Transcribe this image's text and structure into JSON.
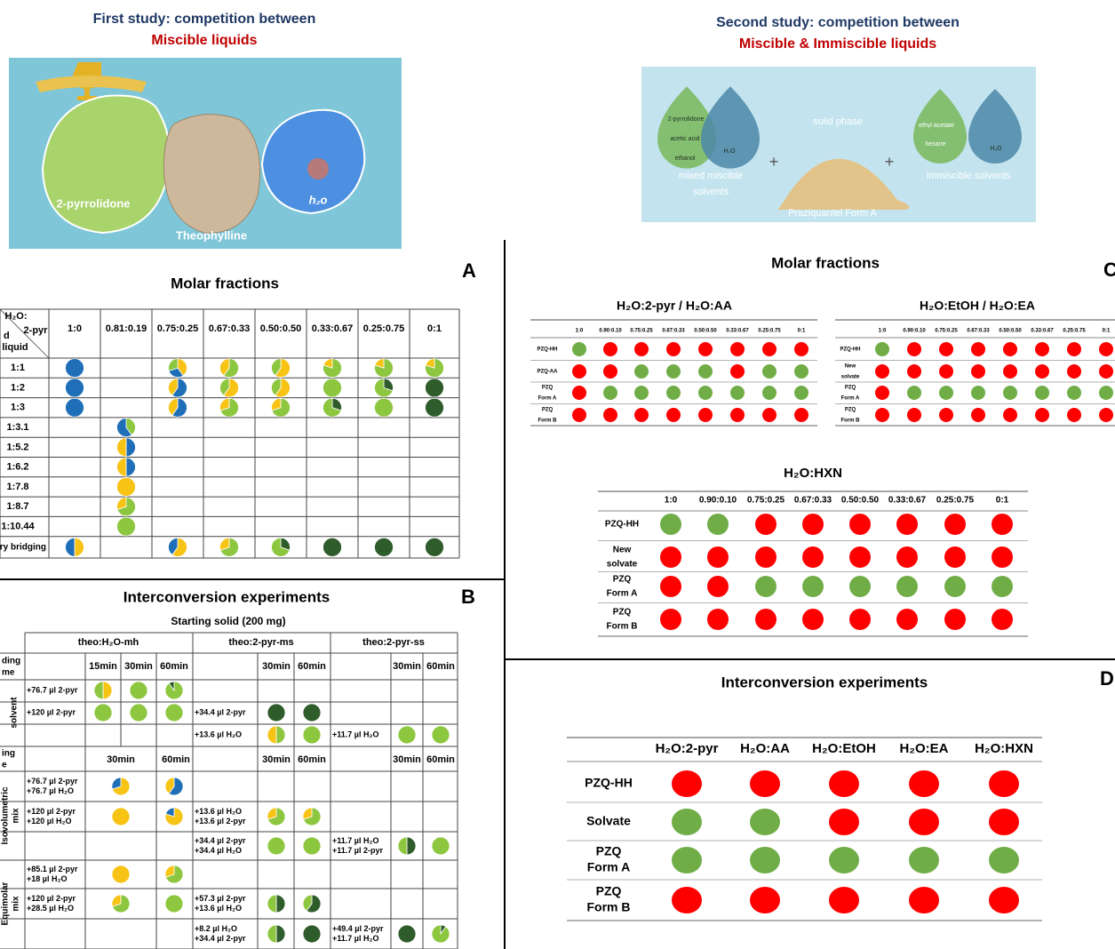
{
  "study1": {
    "title": "First study: competition between",
    "subtitle": "Miscible liquids",
    "labels": [
      "2-pyrrolidone",
      "Theophylline",
      "h₂o"
    ]
  },
  "study2": {
    "title": "Second study: competition between",
    "subtitle": "Miscible & Immiscible liquids",
    "mixed": [
      "2-pyrrolidone",
      "acetic acid",
      "ethanol",
      "H₂O"
    ],
    "mixed_label": [
      "mixed miscible",
      "solvents"
    ],
    "solid": "solid phase",
    "form": "Praziquantel Form A",
    "immiscible": [
      "ethyl acetate",
      "hexane",
      "H₂O"
    ],
    "immiscible_label": "immiscible solvents"
  },
  "panel_a": {
    "letter": "A",
    "title": "Molar fractions",
    "corner": [
      "H₂O:",
      "2-pyr",
      "d",
      "liquid"
    ],
    "columns": [
      "1:0",
      "0.81:0.19",
      "0.75:0.25",
      "0.67:0.33",
      "0.50:0.50",
      "0.33:0.67",
      "0.25:0.75",
      "0:1"
    ],
    "rows": [
      "1:1",
      "1:2",
      "1:3",
      "1:3.1",
      "1:5.2",
      "1:6.2",
      "1:7.8",
      "1:8.7",
      "1:10.44",
      "rry bridging"
    ]
  },
  "panel_b": {
    "letter": "B",
    "title": "Interconversion experiments",
    "subtitle": "Starting solid (200 mg)",
    "groups": [
      "theo:H₂O-mh",
      "theo:2-pyr-ms",
      "theo:2-pyr-ss"
    ],
    "grinding": [
      "ding",
      "me"
    ],
    "grinding_times": [
      "15min",
      "30min",
      "60min",
      "30min",
      "60min",
      "30min",
      "60min"
    ],
    "ageing": [
      "ing",
      "e"
    ],
    "ageing_times": [
      "30min",
      "60min",
      "30min",
      "60min",
      "30min",
      "60min"
    ],
    "individual": {
      "labels": [
        "solvent"
      ],
      "mh": [
        "+76.7 µl 2-pyr",
        "+120 µl 2-pyr"
      ],
      "ms": [
        "+34.4 µl 2-pyr",
        "+13.6 µl H₂O"
      ],
      "ss": [
        "+11.7 µl H₂O"
      ]
    },
    "isovolumetric": {
      "labels": [
        "Isovolumetric",
        "mix"
      ],
      "mh": [
        [
          "+76.7 µl 2-pyr",
          "+76.7 µl H₂O"
        ],
        [
          "+120 µl 2-pyr",
          "+120 µl H₂O"
        ]
      ],
      "ms": [
        [
          "+13.6 µl H₂O",
          "+13.6 µl 2-pyr"
        ],
        [
          "+34.4 µl 2-pyr",
          "+34.4 µl H₂O"
        ]
      ],
      "ss": [
        [
          "+11.7 µl H₂O",
          "+11.7 µl 2-pyr"
        ]
      ]
    },
    "equimolar": {
      "labels": [
        "Equimolar",
        "mix"
      ],
      "mh": [
        [
          "+85.1 µl 2-pyr",
          "+18 µl H₂O"
        ],
        [
          "+120 µl 2-pyr",
          "+28.5 µl H₂O"
        ]
      ],
      "ms": [
        [
          "+57.3 µl 2-pyr",
          "+13.6 µl H₂O"
        ],
        [
          "+8.2 µl H₂O",
          "+34.4 µl 2-pyr"
        ]
      ],
      "ss": [
        [
          "+49.4 µl 2-pyr",
          "+11.7 µl H₂O"
        ]
      ]
    }
  },
  "panel_c": {
    "letter": "C",
    "title": "Molar fractions",
    "tables": [
      {
        "title": "H₂O:2-pyr / H₂O:AA",
        "columns": [
          "1:0",
          "0.90:0.10",
          "0.75:0.25",
          "0.67:0.33",
          "0.50:0.50",
          "0.33:0.67",
          "0.25:0.75",
          "0:1"
        ],
        "rows": [
          "PZQ-HH",
          "PZQ-AA",
          [
            "PZQ",
            "Form A"
          ],
          [
            "PZQ",
            "Form B"
          ]
        ]
      },
      {
        "title": "H₂O:EtOH / H₂O:EA",
        "columns": [
          "1:0",
          "0.90:0.10",
          "0.75:0.25",
          "0.67:0.33",
          "0.50:0.50",
          "0.33:0.67",
          "0.25:0.75",
          "0:1"
        ],
        "rows": [
          "PZQ-HH",
          [
            "New",
            "solvate"
          ],
          [
            "PZQ",
            "Form A"
          ],
          [
            "PZQ",
            "Form B"
          ]
        ]
      },
      {
        "title": "H₂O:HXN",
        "columns": [
          "1:0",
          "0.90:0.10",
          "0.75:0.25",
          "0.67:0.33",
          "0.50:0.50",
          "0.33:0.67",
          "0.25:0.75",
          "0:1"
        ],
        "rows": [
          "PZQ-HH",
          [
            "New",
            "solvate"
          ],
          [
            "PZQ",
            "Form A"
          ],
          [
            "PZQ",
            "Form B"
          ]
        ]
      }
    ]
  },
  "panel_d": {
    "letter": "D",
    "title": "Interconversion experiments",
    "columns": [
      "H₂O:2-pyr",
      "H₂O:AA",
      "H₂O:EtOH",
      "H₂O:EA",
      "H₂O:HXN"
    ],
    "rows": [
      "PZQ-HH",
      "Solvate",
      [
        "PZQ",
        "Form A"
      ],
      [
        "PZQ",
        "Form B"
      ]
    ]
  }
}
